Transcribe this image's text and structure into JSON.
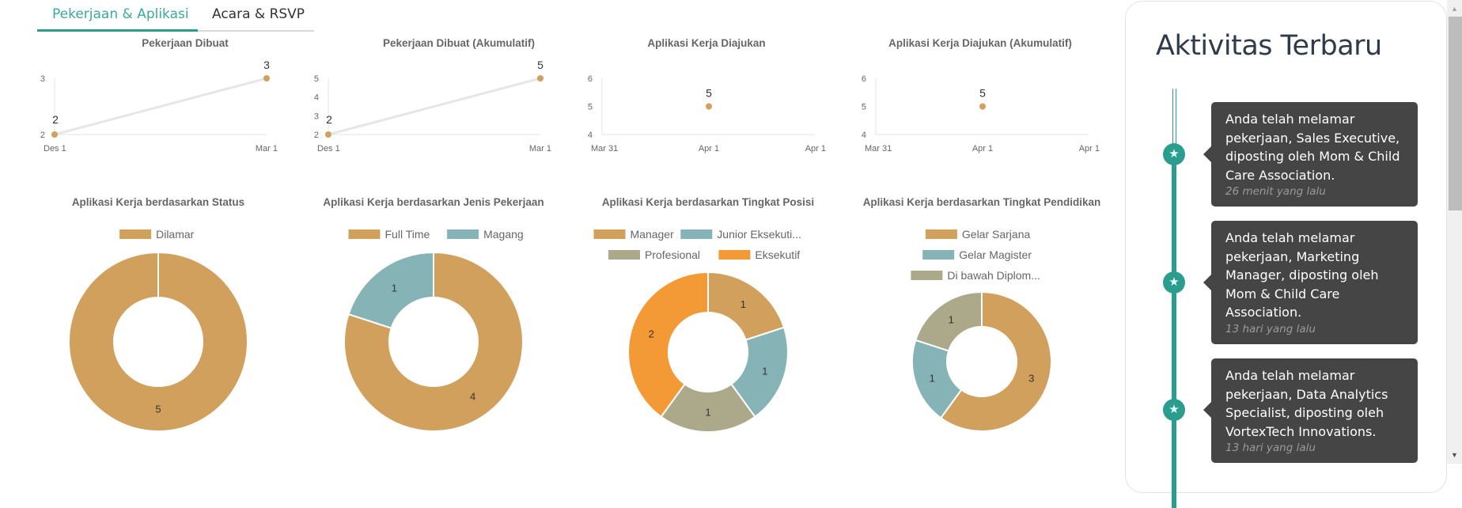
{
  "tabs": [
    {
      "label": "Pekerjaan & Aplikasi",
      "active": true
    },
    {
      "label": "Acara & RSVP",
      "active": false
    }
  ],
  "colors": {
    "accent": "#2a9d8f",
    "gold": "#d0a05c",
    "teal": "#86b4b6",
    "olive": "#aba98a",
    "orange": "#f39a36",
    "line": "#e6e6e6",
    "card_bg": "#454545"
  },
  "chart_data": [
    {
      "id": "pekerjaan-dibuat",
      "type": "line",
      "title": "Pekerjaan Dibuat",
      "x": [
        "Des 1",
        "Mar 1"
      ],
      "values": [
        2,
        3
      ],
      "yticks": [
        "2",
        "3"
      ],
      "ylim": [
        2,
        3
      ],
      "xlabel": "",
      "ylabel": "",
      "grid": false,
      "legend": "none"
    },
    {
      "id": "pekerjaan-dibuat-akumulatif",
      "type": "line",
      "title": "Pekerjaan Dibuat (Akumulatif)",
      "x": [
        "Des 1",
        "Mar 1"
      ],
      "values": [
        2,
        5
      ],
      "yticks": [
        "2",
        "3",
        "4",
        "5"
      ],
      "ylim": [
        2,
        5
      ],
      "xlabel": "",
      "ylabel": "",
      "grid": false,
      "legend": "none"
    },
    {
      "id": "aplikasi-kerja-diajukan",
      "type": "line",
      "title": "Aplikasi Kerja Diajukan",
      "xticks": [
        "Mar 31",
        "Apr 1",
        "Apr 1"
      ],
      "x": [
        "Apr 1"
      ],
      "values": [
        5
      ],
      "yticks": [
        "4",
        "5",
        "6"
      ],
      "ylim": [
        4,
        6
      ],
      "xlabel": "",
      "ylabel": "",
      "grid": false,
      "legend": "none"
    },
    {
      "id": "aplikasi-kerja-diajukan-akumulatif",
      "type": "line",
      "title": "Aplikasi Kerja Diajukan (Akumulatif)",
      "xticks": [
        "Mar 31",
        "Apr 1",
        "Apr 1"
      ],
      "x": [
        "Apr 1"
      ],
      "values": [
        5
      ],
      "yticks": [
        "4",
        "5",
        "6"
      ],
      "ylim": [
        4,
        6
      ],
      "xlabel": "",
      "ylabel": "",
      "grid": false,
      "legend": "none"
    },
    {
      "id": "status",
      "type": "pie",
      "title": "Aplikasi Kerja berdasarkan Status",
      "categories": [
        "Dilamar"
      ],
      "values": [
        5
      ],
      "colors": [
        "#d0a05c"
      ],
      "legend": "top"
    },
    {
      "id": "jenis-pekerjaan",
      "type": "pie",
      "title": "Aplikasi Kerja berdasarkan Jenis Pekerjaan",
      "categories": [
        "Full Time",
        "Magang"
      ],
      "values": [
        4,
        1
      ],
      "colors": [
        "#d0a05c",
        "#86b4b6"
      ],
      "legend": "top"
    },
    {
      "id": "tingkat-posisi",
      "type": "pie",
      "title": "Aplikasi Kerja berdasarkan Tingkat Posisi",
      "categories": [
        "Manager",
        "Junior Eksekuti...",
        "Profesional",
        "Eksekutif"
      ],
      "values": [
        1,
        1,
        1,
        2
      ],
      "colors": [
        "#d0a05c",
        "#86b4b6",
        "#aba98a",
        "#f39a36"
      ],
      "legend": "top"
    },
    {
      "id": "tingkat-pendidikan",
      "type": "pie",
      "title": "Aplikasi Kerja berdasarkan Tingkat Pendidikan",
      "categories": [
        "Gelar Sarjana",
        "Gelar Magister",
        "Di bawah Diplom..."
      ],
      "values": [
        3,
        1,
        1
      ],
      "colors": [
        "#d0a05c",
        "#86b4b6",
        "#aba98a"
      ],
      "legend": "top"
    }
  ],
  "activity": {
    "title": "Aktivitas Terbaru",
    "items": [
      {
        "text": "Anda telah melamar pekerjaan, Sales Executive, diposting oleh Mom & Child Care Association.",
        "time": "26 menit yang lalu",
        "icon": "star-icon"
      },
      {
        "text": "Anda telah melamar pekerjaan, Marketing Manager, diposting oleh Mom & Child Care Association.",
        "time": "13 hari yang lalu",
        "icon": "star-icon"
      },
      {
        "text": "Anda telah melamar pekerjaan, Data Analytics Specialist, diposting oleh VortexTech Innovations.",
        "time": "13 hari yang lalu",
        "icon": "star-icon"
      }
    ]
  }
}
